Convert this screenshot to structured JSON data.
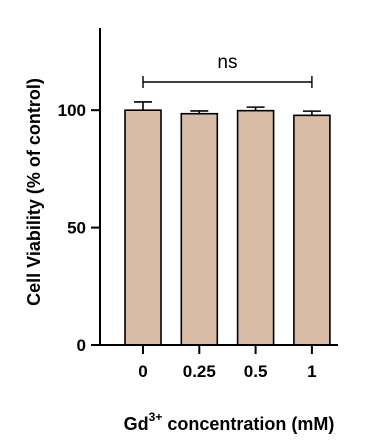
{
  "chart_data": {
    "type": "bar",
    "categories": [
      "0",
      "0.25",
      "0.5",
      "1"
    ],
    "values": [
      100,
      98.5,
      99.8,
      97.8
    ],
    "errors": [
      3.5,
      1.2,
      1.5,
      1.8
    ],
    "ylabel": "Cell Viability (% of control)",
    "xlabel_prefix": "Gd",
    "xlabel_sup": "3+",
    "xlabel_suffix": " concentration (mM)",
    "ylim": [
      0,
      135
    ],
    "yticks": [
      0,
      50,
      100
    ],
    "significance": {
      "label": "ns",
      "from": 0,
      "to": 3,
      "y": 112
    },
    "bar_color": "#d9bca6",
    "bar_stroke": "#000000",
    "grid": false
  }
}
